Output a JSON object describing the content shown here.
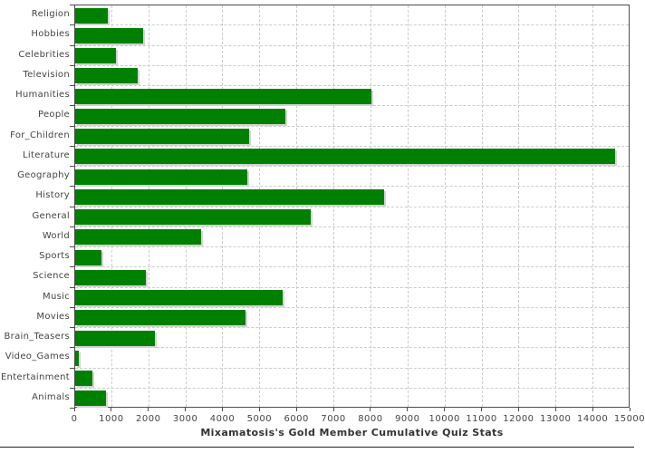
{
  "chart_data": {
    "type": "bar",
    "orientation": "horizontal",
    "title": "Mixamatosis's Gold Member Cumulative Quiz Stats",
    "categories": [
      "Religion",
      "Hobbies",
      "Celebrities",
      "Television",
      "Humanities",
      "People",
      "For_Children",
      "Literature",
      "Geography",
      "History",
      "General",
      "World",
      "Sports",
      "Science",
      "Music",
      "Movies",
      "Brain_Teasers",
      "Video_Games",
      "Entertainment",
      "Animals"
    ],
    "values": [
      870,
      1840,
      1110,
      1680,
      8010,
      5680,
      4700,
      14580,
      4640,
      8340,
      6360,
      3390,
      700,
      1910,
      5600,
      4610,
      2160,
      100,
      470,
      840
    ],
    "xlim": [
      0,
      15000
    ],
    "x_ticks": [
      0,
      1000,
      2000,
      3000,
      4000,
      5000,
      6000,
      7000,
      8000,
      9000,
      10000,
      11000,
      12000,
      13000,
      14000,
      15000
    ],
    "x_tick_labels": [
      "0",
      "1000",
      "2000",
      "3000",
      "4000",
      "5000",
      "6000",
      "7000",
      "8000",
      "9000",
      "10000",
      "11000",
      "12000",
      "13000",
      "14000",
      "15000"
    ],
    "grid": true,
    "legend": "none",
    "colors": {
      "bar": "#008000",
      "bar_shadow": "#d3d3d3",
      "gridline": "#cccccc",
      "axis": "#4d4d4d",
      "tick_label": "#444444",
      "title": "#333333",
      "background": "#ffffff"
    }
  }
}
